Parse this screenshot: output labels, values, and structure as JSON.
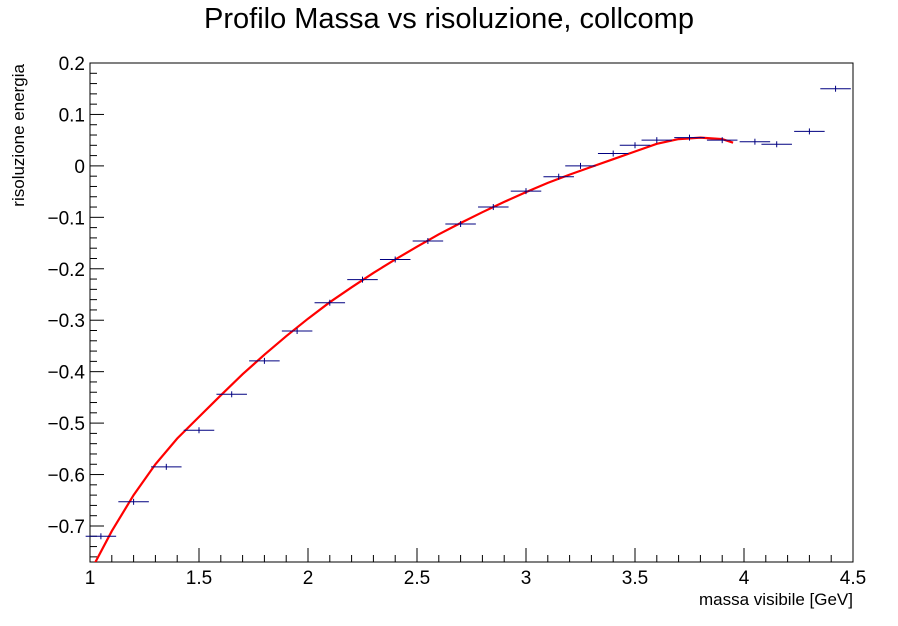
{
  "chart_data": {
    "type": "scatter",
    "title": "Profilo Massa vs risoluzione,  collcomp",
    "xlabel": "massa visibile [GeV]",
    "ylabel": "risoluzione energia",
    "xlim": [
      1,
      4.5
    ],
    "ylim": [
      -0.77,
      0.2
    ],
    "xticks": [
      1,
      1.5,
      2,
      2.5,
      3,
      3.5,
      4,
      4.5
    ],
    "xtick_labels": [
      "1",
      "1.5",
      "2",
      "2.5",
      "3",
      "3.5",
      "4",
      "4.5"
    ],
    "yticks": [
      -0.7,
      -0.6,
      -0.5,
      -0.4,
      -0.3,
      -0.2,
      -0.1,
      0,
      0.1,
      0.2
    ],
    "ytick_labels": [
      "−0.7",
      "−0.6",
      "−0.5",
      "−0.4",
      "−0.3",
      "−0.2",
      "−0.1",
      "0",
      "0.1",
      "0.2"
    ],
    "grid": false,
    "colors": {
      "points": "#000080",
      "fit": "#ff0000",
      "axes": "#000000"
    },
    "points": [
      {
        "x": 1.05,
        "y": -0.72,
        "xerr": 0.07
      },
      {
        "x": 1.2,
        "y": -0.653,
        "xerr": 0.07
      },
      {
        "x": 1.35,
        "y": -0.585,
        "xerr": 0.07
      },
      {
        "x": 1.5,
        "y": -0.514,
        "xerr": 0.07
      },
      {
        "x": 1.65,
        "y": -0.444,
        "xerr": 0.07
      },
      {
        "x": 1.8,
        "y": -0.379,
        "xerr": 0.07
      },
      {
        "x": 1.95,
        "y": -0.321,
        "xerr": 0.07
      },
      {
        "x": 2.1,
        "y": -0.266,
        "xerr": 0.07
      },
      {
        "x": 2.25,
        "y": -0.221,
        "xerr": 0.07
      },
      {
        "x": 2.4,
        "y": -0.182,
        "xerr": 0.07
      },
      {
        "x": 2.55,
        "y": -0.146,
        "xerr": 0.07
      },
      {
        "x": 2.7,
        "y": -0.113,
        "xerr": 0.07
      },
      {
        "x": 2.85,
        "y": -0.08,
        "xerr": 0.07
      },
      {
        "x": 3.0,
        "y": -0.049,
        "xerr": 0.07
      },
      {
        "x": 3.15,
        "y": -0.021,
        "xerr": 0.07
      },
      {
        "x": 3.25,
        "y": 0.0,
        "xerr": 0.07
      },
      {
        "x": 3.4,
        "y": 0.024,
        "xerr": 0.07
      },
      {
        "x": 3.5,
        "y": 0.04,
        "xerr": 0.07
      },
      {
        "x": 3.6,
        "y": 0.05,
        "xerr": 0.07
      },
      {
        "x": 3.75,
        "y": 0.055,
        "xerr": 0.07
      },
      {
        "x": 3.9,
        "y": 0.05,
        "xerr": 0.07
      },
      {
        "x": 4.05,
        "y": 0.047,
        "xerr": 0.07
      },
      {
        "x": 4.15,
        "y": 0.042,
        "xerr": 0.07
      },
      {
        "x": 4.3,
        "y": 0.067,
        "xerr": 0.07
      },
      {
        "x": 4.42,
        "y": 0.15,
        "xerr": 0.07
      }
    ],
    "fit": {
      "type": "polynomial",
      "x": [
        1.0,
        1.1,
        1.2,
        1.3,
        1.4,
        1.5,
        1.6,
        1.7,
        1.8,
        1.9,
        2.0,
        2.1,
        2.2,
        2.3,
        2.4,
        2.5,
        2.6,
        2.7,
        2.8,
        2.9,
        3.0,
        3.1,
        3.2,
        3.3,
        3.4,
        3.5,
        3.6,
        3.7,
        3.8,
        3.9,
        3.95
      ],
      "y": [
        -0.79,
        -0.71,
        -0.64,
        -0.58,
        -0.53,
        -0.488,
        -0.446,
        -0.405,
        -0.367,
        -0.331,
        -0.297,
        -0.265,
        -0.236,
        -0.208,
        -0.182,
        -0.157,
        -0.133,
        -0.111,
        -0.09,
        -0.07,
        -0.051,
        -0.033,
        -0.017,
        -0.002,
        0.013,
        0.028,
        0.043,
        0.052,
        0.055,
        0.052,
        0.045
      ]
    }
  }
}
